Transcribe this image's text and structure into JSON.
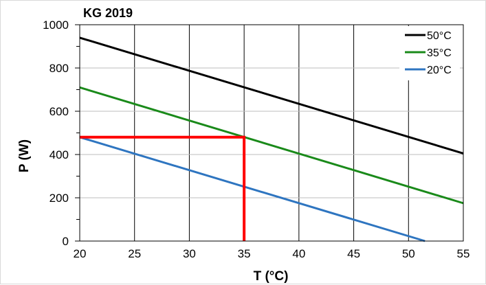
{
  "chart_data": {
    "type": "line",
    "title": "KG 2019",
    "xlabel": "T (°C)",
    "ylabel": "P (W)",
    "xlim": [
      20,
      55
    ],
    "ylim": [
      0,
      1000
    ],
    "x_ticks": [
      "20",
      "25",
      "30",
      "35",
      "40",
      "45",
      "50",
      "55"
    ],
    "y_ticks": [
      "0",
      "200",
      "400",
      "600",
      "800",
      "1000"
    ],
    "grid": true,
    "legend": "top-right",
    "series": [
      {
        "name": "50°C",
        "color": "#000000",
        "x": [
          20,
          55
        ],
        "y": [
          940,
          405
        ]
      },
      {
        "name": "35°C",
        "color": "#1a8a1a",
        "x": [
          20,
          55
        ],
        "y": [
          710,
          175
        ]
      },
      {
        "name": "20°C",
        "color": "#2e75c0",
        "x": [
          20,
          51.5
        ],
        "y": [
          480,
          0
        ]
      }
    ],
    "annotations": [
      {
        "type": "guide",
        "color": "#ff0000",
        "points": [
          [
            20,
            480
          ],
          [
            35,
            480
          ],
          [
            35,
            0
          ]
        ]
      }
    ]
  }
}
